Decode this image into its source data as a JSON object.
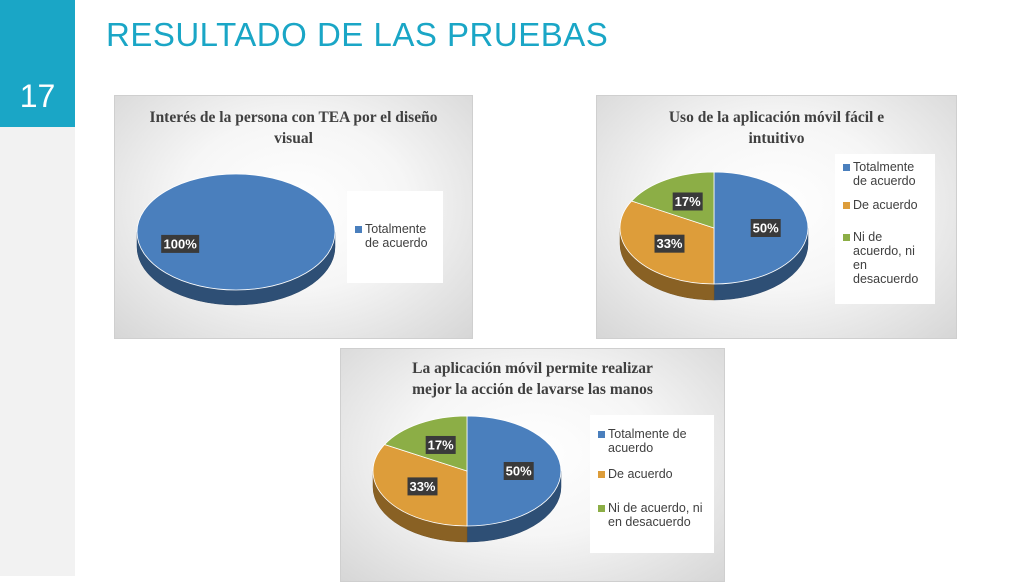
{
  "slide": {
    "number": "17",
    "title": "RESULTADO DE LAS PRUEBAS",
    "accent_color": "#1aa6c6"
  },
  "chart_data": [
    {
      "type": "pie",
      "title": "Interés de la persona con TEA por el diseño visual",
      "categories": [
        "Totalmente de acuerdo"
      ],
      "values": [
        100
      ],
      "data_labels": [
        "100%"
      ],
      "colors": [
        "#4a7fbd"
      ],
      "legend": "right"
    },
    {
      "type": "pie",
      "title": "Uso de la aplicación móvil fácil e intuitivo",
      "categories": [
        "Totalmente de acuerdo",
        "De acuerdo",
        "Ni de acuerdo, ni en desacuerdo"
      ],
      "values": [
        50,
        33,
        17
      ],
      "data_labels": [
        "50%",
        "33%",
        "17%"
      ],
      "colors": [
        "#4a7fbd",
        "#dd9d3a",
        "#8cae46"
      ],
      "legend": "right"
    },
    {
      "type": "pie",
      "title": "La aplicación móvil permite realizar mejor la acción de lavarse las manos",
      "categories": [
        "Totalmente de acuerdo",
        "De acuerdo",
        "Ni de acuerdo, ni en desacuerdo"
      ],
      "values": [
        50,
        33,
        17
      ],
      "data_labels": [
        "50%",
        "33%",
        "17%"
      ],
      "colors": [
        "#4a7fbd",
        "#dd9d3a",
        "#8cae46"
      ],
      "legend": "right"
    }
  ]
}
